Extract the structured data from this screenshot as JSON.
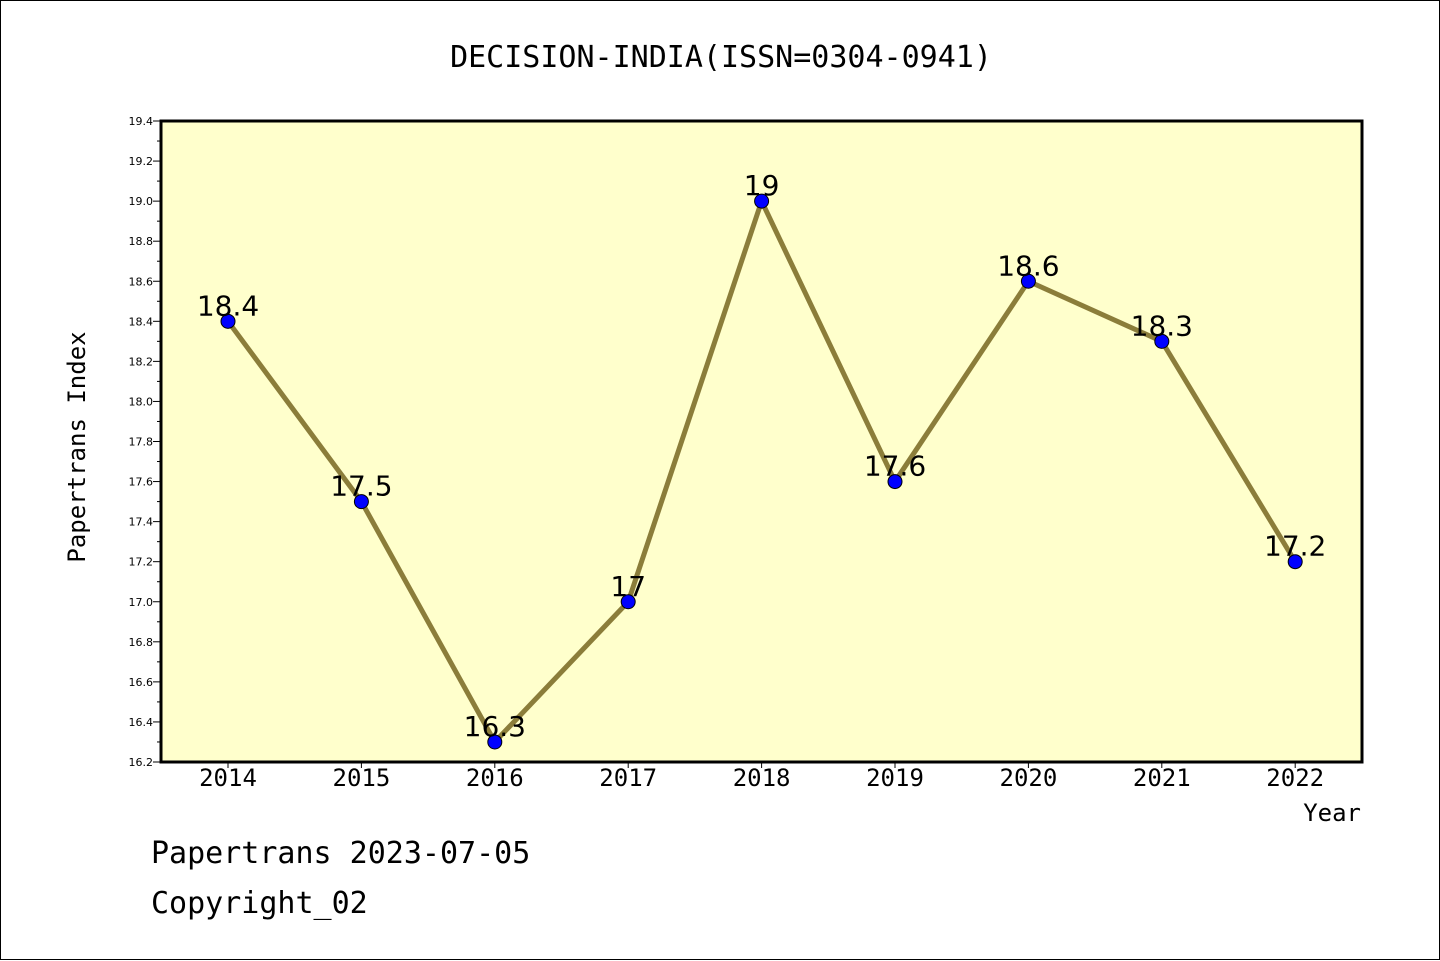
{
  "chart_data": {
    "type": "line",
    "title": "DECISION-INDIA(ISSN=0304-0941)",
    "xlabel": "Year",
    "ylabel": "Papertrans Index",
    "categories": [
      "2014",
      "2015",
      "2016",
      "2017",
      "2018",
      "2019",
      "2020",
      "2021",
      "2022"
    ],
    "values": [
      18.4,
      17.5,
      16.3,
      17,
      19,
      17.6,
      18.6,
      18.3,
      17.2
    ],
    "data_labels": [
      "18.4",
      "17.5",
      "16.3",
      "17",
      "19",
      "17.6",
      "18.6",
      "18.3",
      "17.2"
    ],
    "ylim": [
      16.2,
      19.4
    ],
    "yticks": [
      "16.2",
      "16.4",
      "16.6",
      "16.8",
      "17.0",
      "17.2",
      "17.4",
      "17.6",
      "17.8",
      "18.0",
      "18.2",
      "18.4",
      "18.6",
      "18.8",
      "19.0",
      "19.2",
      "19.4"
    ],
    "grid": false,
    "legend": "none",
    "colors": {
      "plot_background": "#ffffcc",
      "line": "#8b7d3a",
      "marker": "#0000ff"
    }
  },
  "footer": {
    "line1": "Papertrans 2023-07-05",
    "line2": "Copyright_02"
  }
}
